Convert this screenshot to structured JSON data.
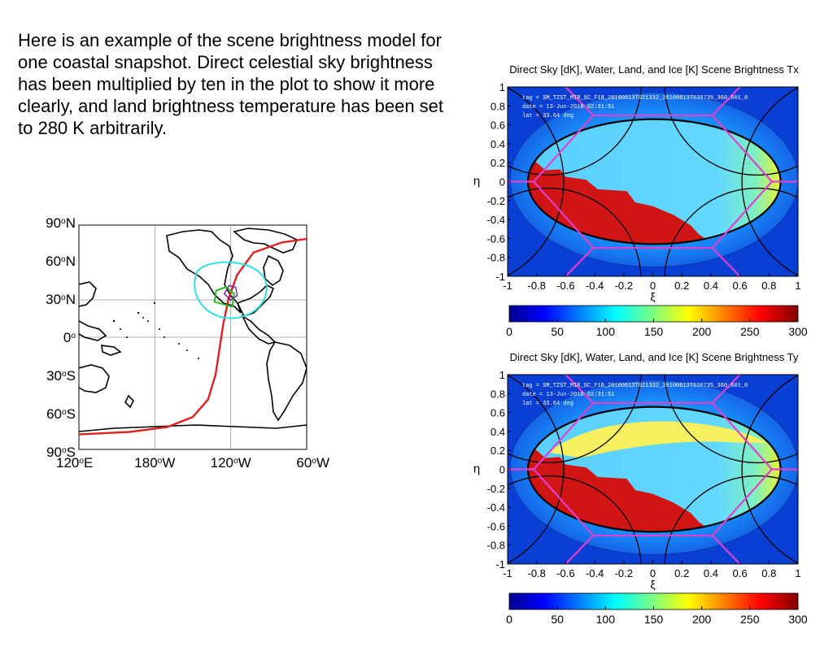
{
  "description_text": "Here is an example of the scene brightness model for one coastal snapshot. Direct celestial sky brightness has been multiplied by ten in the plot to show it more clearly, and land brightness temperature has been set to 280 K arbitrarily.",
  "colors": {
    "ocean_far": "#0a3fd6",
    "ocean_bright": "#59cfff",
    "land": "#d11414",
    "hexagon": "#e040d0",
    "track": "#e02020",
    "footprint": "#30e0e8"
  },
  "chart_data": [
    {
      "type": "map",
      "lat_labels": [
        {
          "pre": "90",
          "sup": "o",
          "post": "N"
        },
        {
          "pre": "60",
          "sup": "o",
          "post": "N"
        },
        {
          "pre": "30",
          "sup": "o",
          "post": "N"
        },
        {
          "pre": "0",
          "sup": "o",
          "post": ""
        },
        {
          "pre": "30",
          "sup": "o",
          "post": "S"
        },
        {
          "pre": "60",
          "sup": "o",
          "post": "S"
        },
        {
          "pre": "90",
          "sup": "o",
          "post": "S"
        }
      ],
      "lon_labels": [
        {
          "pre": "120",
          "sup": "o",
          "post": "E"
        },
        {
          "pre": "180",
          "sup": "o",
          "post": "W"
        },
        {
          "pre": "120",
          "sup": "o",
          "post": "W"
        },
        {
          "pre": "60",
          "sup": "o",
          "post": "W"
        }
      ],
      "lon_range": [
        120,
        300
      ],
      "lat_range": [
        -90,
        90
      ],
      "grid": true,
      "satellite_track": [
        [
          120,
          -78
        ],
        [
          160,
          -76
        ],
        [
          190,
          -72
        ],
        [
          210,
          -64
        ],
        [
          222,
          -50
        ],
        [
          228,
          -30
        ],
        [
          231,
          -10
        ],
        [
          234,
          10
        ],
        [
          238,
          30
        ],
        [
          245,
          50
        ],
        [
          258,
          68
        ],
        [
          280,
          76
        ],
        [
          300,
          79
        ]
      ],
      "footprint_center": [
        240,
        33.64
      ]
    },
    {
      "type": "heatmap",
      "title": "Direct Sky [dK], Water, Land, and Ice [K] Scene Brightness Tx",
      "xlabel": "ξ",
      "ylabel": "η",
      "xlim": [
        -1,
        1
      ],
      "ylim": [
        -1,
        1
      ],
      "x_ticks": [
        "-1",
        "-0.8",
        "-0.6",
        "-0.4",
        "-0.2",
        "0",
        "0.2",
        "0.4",
        "0.6",
        "0.8",
        "1"
      ],
      "y_ticks": [
        "1",
        "0.8",
        "0.6",
        "0.4",
        "0.2",
        "0",
        "-0.2",
        "-0.4",
        "-0.6",
        "-0.8",
        "-1"
      ],
      "annotation": [
        "tag  = SM_TZST_MIR_SC_F1B_20100613T021332_20100613T030735_360_001_0",
        "date = 13-Jun-2010 02:31:51",
        "lat  = 33.64 deg"
      ],
      "colorbar": {
        "min": 0,
        "max": 300,
        "ticks": [
          "0",
          "50",
          "100",
          "150",
          "200",
          "250",
          "300"
        ]
      }
    },
    {
      "type": "heatmap",
      "title": "Direct Sky [dK], Water, Land, and Ice [K] Scene Brightness Ty",
      "xlabel": "ξ",
      "ylabel": "η",
      "xlim": [
        -1,
        1
      ],
      "ylim": [
        -1,
        1
      ],
      "x_ticks": [
        "-1",
        "-0.8",
        "-0.6",
        "-0.4",
        "-0.2",
        "0",
        "0.2",
        "0.4",
        "0.6",
        "0.8",
        "1"
      ],
      "y_ticks": [
        "1",
        "0.8",
        "0.6",
        "0.4",
        "0.2",
        "0",
        "-0.2",
        "-0.4",
        "-0.6",
        "-0.8",
        "-1"
      ],
      "annotation": [
        "tag  = SM_TZST_MIR_SC_F1B_20100613T021332_20100613T030735_360_001_0",
        "date = 13-Jun-2010 02:31:51",
        "lat  = 33.64 deg"
      ],
      "colorbar": {
        "min": 0,
        "max": 300,
        "ticks": [
          "0",
          "50",
          "100",
          "150",
          "200",
          "250",
          "300"
        ]
      }
    }
  ]
}
